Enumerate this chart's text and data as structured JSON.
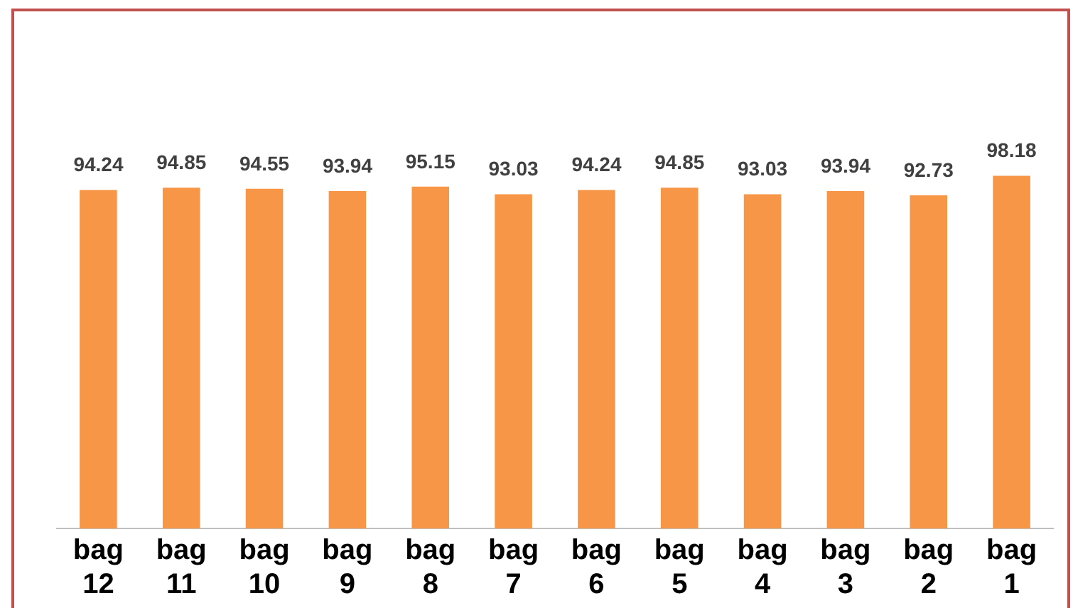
{
  "chart_data": {
    "type": "bar",
    "categories": [
      "bag 12",
      "bag 11",
      "bag 10",
      "bag 9",
      "bag 8",
      "bag 7",
      "bag 6",
      "bag 5",
      "bag 4",
      "bag 3",
      "bag 2",
      "bag 1"
    ],
    "values": [
      94.24,
      94.85,
      94.55,
      93.94,
      95.15,
      93.03,
      94.24,
      94.85,
      93.03,
      93.94,
      92.73,
      98.18
    ],
    "color": "#f79646",
    "data_labels": true,
    "grid": false,
    "legend": false
  }
}
